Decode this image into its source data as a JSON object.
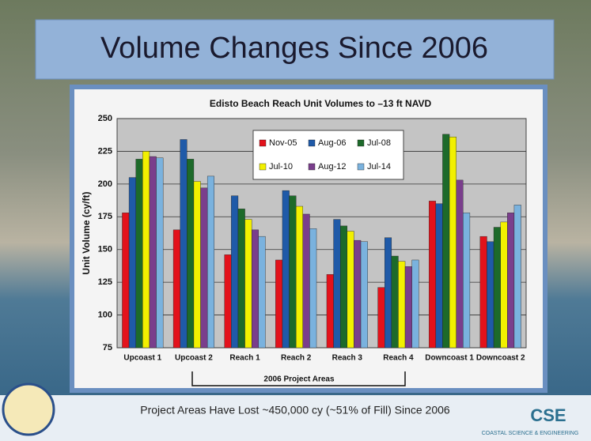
{
  "slide": {
    "title": "Volume Changes Since 2006",
    "caption": "Project Areas Have Lost ~450,000 cy (~51% of Fill) Since 2006",
    "logo": "CSE",
    "logo_text": "COASTAL SCIENCE & ENGINEERING"
  },
  "chart_data": {
    "type": "bar",
    "title": "Edisto Beach Reach Unit Volumes to –13 ft NAVD",
    "y_label": "Unit Volume (cy/ft)",
    "categories": [
      "Upcoast 1",
      "Upcoast 2",
      "Reach 1",
      "Reach 2",
      "Reach 3",
      "Reach 4",
      "Downcoast 1",
      "Downcoast 2"
    ],
    "series": [
      {
        "name": "Nov-05",
        "color": "#e3121b",
        "values": [
          178,
          165,
          146,
          142,
          131,
          121,
          187,
          160
        ]
      },
      {
        "name": "Aug-06",
        "color": "#1f5aa8",
        "values": [
          205,
          234,
          191,
          195,
          173,
          159,
          185,
          156
        ]
      },
      {
        "name": "Jul-08",
        "color": "#1d6a2a",
        "values": [
          219,
          219,
          181,
          191,
          168,
          145,
          238,
          167
        ]
      },
      {
        "name": "Jul-10",
        "color": "#f2f000",
        "values": [
          225,
          202,
          173,
          183,
          164,
          141,
          236,
          171
        ]
      },
      {
        "name": "Aug-12",
        "color": "#7a3e8c",
        "values": [
          221,
          197,
          165,
          177,
          157,
          137,
          203,
          178
        ]
      },
      {
        "name": "Jul-14",
        "color": "#7ab2de",
        "values": [
          220,
          206,
          160,
          166,
          156,
          142,
          178,
          184
        ]
      }
    ],
    "ylim": [
      75,
      250
    ],
    "yticks": [
      75,
      100,
      125,
      150,
      175,
      200,
      225,
      250
    ],
    "grid": true,
    "annotation": "2006 Project Areas"
  }
}
